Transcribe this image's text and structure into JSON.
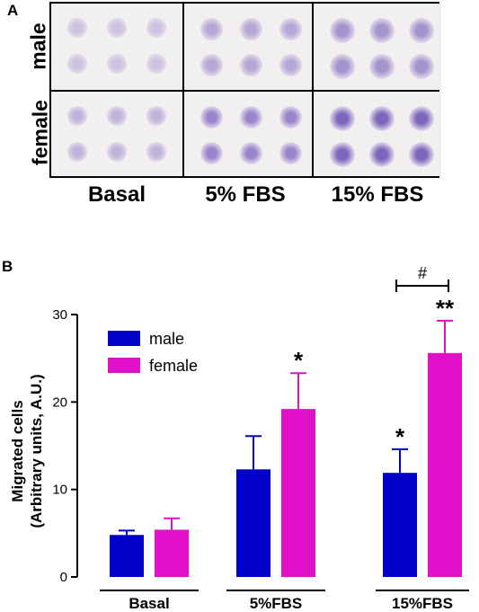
{
  "panel_a": {
    "letter": "A",
    "row_labels": [
      "male",
      "female"
    ],
    "column_labels": [
      "Basal",
      "5% FBS",
      "15% FBS"
    ],
    "well_colors": {
      "male": [
        "#cdc3e0",
        "#b6a6d6",
        "#a493cd"
      ],
      "female": [
        "#bfb3dc",
        "#9a84cb",
        "#7e66bd"
      ]
    }
  },
  "panel_b": {
    "letter": "B",
    "chart_data": {
      "type": "bar",
      "categories": [
        "Basal",
        "5%FBS",
        "15%FBS"
      ],
      "series": [
        {
          "name": "male",
          "color": "#0000c8",
          "values": [
            4.8,
            12.3,
            11.9
          ],
          "errors": [
            0.5,
            3.8,
            2.7
          ]
        },
        {
          "name": "female",
          "color": "#e010c8",
          "values": [
            5.4,
            19.2,
            25.6
          ],
          "errors": [
            1.3,
            4.1,
            3.7
          ]
        }
      ],
      "ylabel_line1": "Migrated cells",
      "ylabel_line2": "(Arbitrary units, A.U.)",
      "ylim": [
        0,
        30
      ],
      "yticks": [
        "0",
        "10",
        "20",
        "30"
      ],
      "significance": [
        {
          "category": "5%FBS",
          "series": "female",
          "label": "*"
        },
        {
          "category": "15%FBS",
          "series": "male",
          "label": "*"
        },
        {
          "category": "15%FBS",
          "series": "female",
          "label": "**"
        }
      ],
      "bracket": {
        "category": "15%FBS",
        "label": "#"
      },
      "legend_position": "top-left"
    }
  }
}
